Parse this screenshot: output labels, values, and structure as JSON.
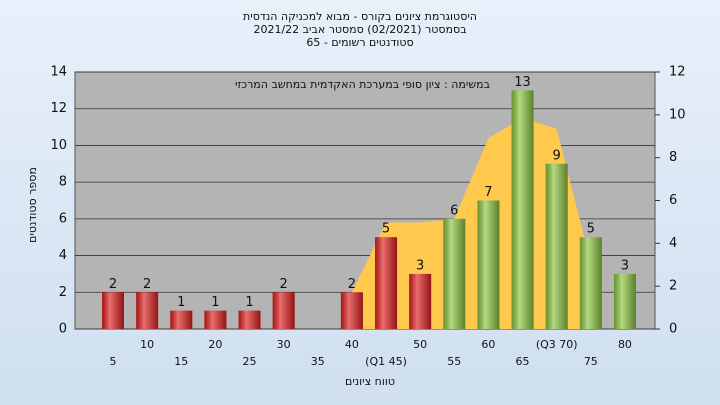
{
  "chart_data": {
    "type": "bar",
    "title": [
      "היסטוגרמת ציונים בקורס - מבוא למכניקה הנדסית",
      "בסמסטר  (02/2021)  סמסטר אביב 2021/22",
      "סטודנטים רשומים - 65"
    ],
    "annotation": "במשימה : ציון סופי במערכת האקדמית במחשב המרכזי",
    "xlabel": "טווח ציונים",
    "ylabel": "מספר סטודנטים",
    "categories": [
      "5",
      "10",
      "15",
      "20",
      "25",
      "30",
      "35",
      "40",
      "(Q1 45)",
      "50",
      "55",
      "60",
      "65",
      "(Q3 70)",
      "75",
      "80"
    ],
    "series": [
      {
        "values": [
          2,
          2,
          1,
          1,
          1,
          2,
          0,
          2,
          5,
          3,
          6,
          7,
          13,
          9,
          5,
          3
        ],
        "colors": [
          "#e02020",
          "#e02020",
          "#e02020",
          "#e02020",
          "#e02020",
          "#e02020",
          "#e02020",
          "#e02020",
          "#e02020",
          "#e02020",
          "#8cc63f",
          "#8cc63f",
          "#8cc63f",
          "#8cc63f",
          "#8cc63f",
          "#8cc63f"
        ]
      },
      {
        "type": "area",
        "color": "#ffc94d",
        "values": [
          null,
          null,
          null,
          null,
          null,
          null,
          null,
          2,
          5.8,
          5.8,
          6,
          10.4,
          11.5,
          10.9,
          3.6,
          null
        ]
      }
    ],
    "ylim": [
      0,
      14
    ],
    "yticks": [
      0,
      2,
      4,
      6,
      8,
      10,
      12,
      14
    ],
    "y2lim": [
      0,
      12
    ],
    "y2ticks": [
      0,
      2,
      4,
      6,
      8,
      10,
      12
    ],
    "grid": true
  }
}
